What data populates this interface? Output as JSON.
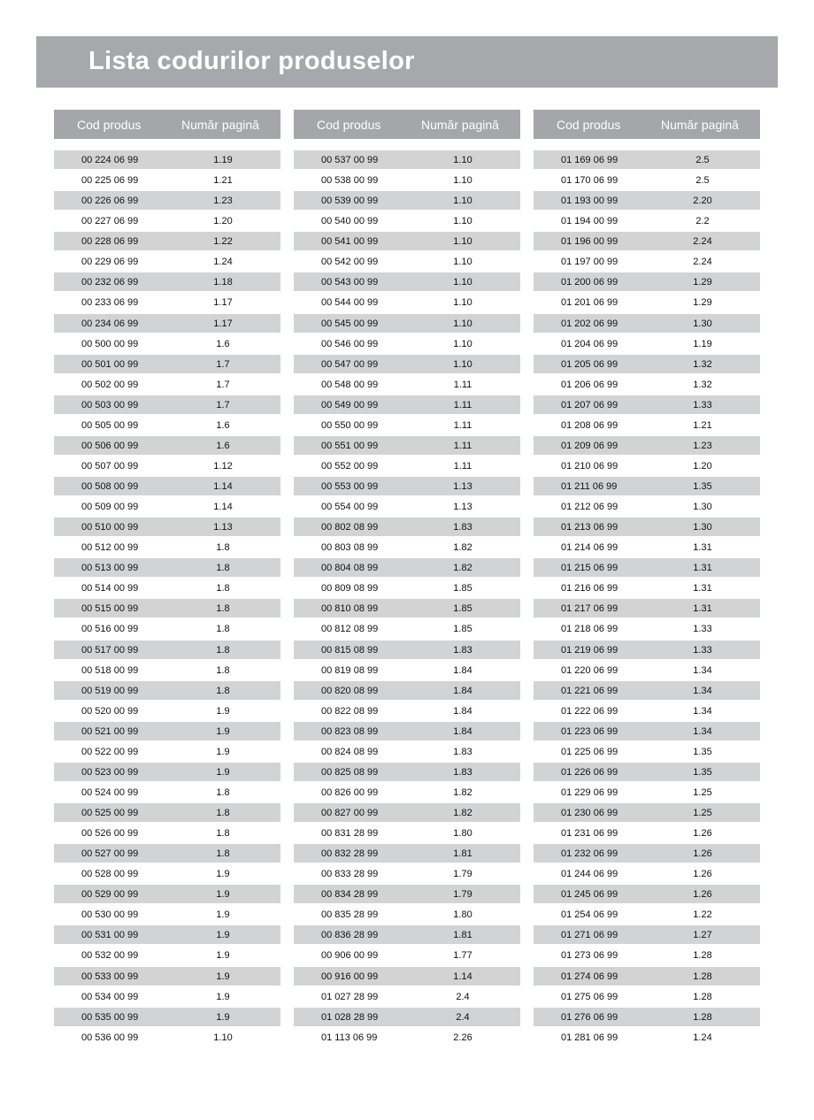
{
  "title": "Lista codurilor produselor",
  "headers": {
    "code": "Cod produs",
    "page": "Număr pagină"
  },
  "colors": {
    "title_bar": "#a7a8ab",
    "header": "#a5a6a9",
    "row_shade": "#d2d3d5"
  },
  "columns": [
    {
      "rows": [
        [
          "00 224 06 99",
          "1.19"
        ],
        [
          "00 225 06 99",
          "1.21"
        ],
        [
          "00 226 06 99",
          "1.23"
        ],
        [
          "00 227 06 99",
          "1.20"
        ],
        [
          "00 228 06 99",
          "1.22"
        ],
        [
          "00 229 06 99",
          "1.24"
        ],
        [
          "00 232 06 99",
          "1.18"
        ],
        [
          "00 233 06 99",
          "1.17"
        ],
        [
          "00 234 06 99",
          "1.17"
        ],
        [
          "00 500 00 99",
          "1.6"
        ],
        [
          "00 501 00 99",
          "1.7"
        ],
        [
          "00 502 00 99",
          "1.7"
        ],
        [
          "00 503 00 99",
          "1.7"
        ],
        [
          "00 505 00 99",
          "1.6"
        ],
        [
          "00 506 00 99",
          "1.6"
        ],
        [
          "00 507 00 99",
          "1.12"
        ],
        [
          "00 508 00 99",
          "1.14"
        ],
        [
          "00 509 00 99",
          "1.14"
        ],
        [
          "00 510 00 99",
          "1.13"
        ],
        [
          "00 512 00 99",
          "1.8"
        ],
        [
          "00 513 00 99",
          "1.8"
        ],
        [
          "00 514 00 99",
          "1.8"
        ],
        [
          "00 515 00 99",
          "1.8"
        ],
        [
          "00 516 00 99",
          "1.8"
        ],
        [
          "00 517 00 99",
          "1.8"
        ],
        [
          "00 518 00 99",
          "1.8"
        ],
        [
          "00 519 00 99",
          "1.8"
        ],
        [
          "00 520 00 99",
          "1.9"
        ],
        [
          "00 521 00 99",
          "1.9"
        ],
        [
          "00 522 00 99",
          "1.9"
        ],
        [
          "00 523 00 99",
          "1.9"
        ],
        [
          "00 524 00 99",
          "1.8"
        ],
        [
          "00 525 00 99",
          "1.8"
        ],
        [
          "00 526 00 99",
          "1.8"
        ],
        [
          "00 527 00 99",
          "1.8"
        ],
        [
          "00 528 00 99",
          "1.9"
        ],
        [
          "00 529 00 99",
          "1.9"
        ],
        [
          "00 530 00 99",
          "1.9"
        ],
        [
          "00 531 00 99",
          "1.9"
        ],
        [
          "00 532 00 99",
          "1.9"
        ],
        [
          "00 533 00 99",
          "1.9"
        ],
        [
          "00 534 00 99",
          "1.9"
        ],
        [
          "00 535 00 99",
          "1.9"
        ],
        [
          "00 536 00 99",
          "1.10"
        ]
      ]
    },
    {
      "rows": [
        [
          "00 537 00 99",
          "1.10"
        ],
        [
          "00 538 00 99",
          "1.10"
        ],
        [
          "00 539 00 99",
          "1.10"
        ],
        [
          "00 540 00 99",
          "1.10"
        ],
        [
          "00 541 00 99",
          "1.10"
        ],
        [
          "00 542 00 99",
          "1.10"
        ],
        [
          "00 543 00 99",
          "1.10"
        ],
        [
          "00 544 00 99",
          "1.10"
        ],
        [
          "00 545 00 99",
          "1.10"
        ],
        [
          "00 546 00 99",
          "1.10"
        ],
        [
          "00 547 00 99",
          "1.10"
        ],
        [
          "00 548 00 99",
          "1.11"
        ],
        [
          "00 549 00 99",
          "1.11"
        ],
        [
          "00 550 00 99",
          "1.11"
        ],
        [
          "00 551 00 99",
          "1.11"
        ],
        [
          "00 552 00 99",
          "1.11"
        ],
        [
          "00 553 00 99",
          "1.13"
        ],
        [
          "00 554 00 99",
          "1.13"
        ],
        [
          "00 802 08 99",
          "1.83"
        ],
        [
          "00 803 08 99",
          "1.82"
        ],
        [
          "00 804 08 99",
          "1.82"
        ],
        [
          "00 809 08 99",
          "1.85"
        ],
        [
          "00 810 08 99",
          "1.85"
        ],
        [
          "00 812 08 99",
          "1.85"
        ],
        [
          "00 815 08 99",
          "1.83"
        ],
        [
          "00 819 08 99",
          "1.84"
        ],
        [
          "00 820 08 99",
          "1.84"
        ],
        [
          "00 822 08 99",
          "1.84"
        ],
        [
          "00 823 08 99",
          "1.84"
        ],
        [
          "00 824 08 99",
          "1.83"
        ],
        [
          "00 825 08 99",
          "1.83"
        ],
        [
          "00 826 00 99",
          "1.82"
        ],
        [
          "00 827 00 99",
          "1.82"
        ],
        [
          "00 831 28 99",
          "1.80"
        ],
        [
          "00 832 28 99",
          "1.81"
        ],
        [
          "00 833 28 99",
          "1.79"
        ],
        [
          "00 834 28 99",
          "1.79"
        ],
        [
          "00 835 28 99",
          "1.80"
        ],
        [
          "00 836 28 99",
          "1.81"
        ],
        [
          "00 906 00 99",
          "1.77"
        ],
        [
          "00 916 00 99",
          "1.14"
        ],
        [
          "01 027 28 99",
          "2.4"
        ],
        [
          "01 028 28 99",
          "2.4"
        ],
        [
          "01 113 06 99",
          "2.26"
        ]
      ]
    },
    {
      "rows": [
        [
          "01 169 06 99",
          "2.5"
        ],
        [
          "01 170 06 99",
          "2.5"
        ],
        [
          "01 193 00 99",
          "2.20"
        ],
        [
          "01 194 00 99",
          "2.2"
        ],
        [
          "01 196 00 99",
          "2.24"
        ],
        [
          "01 197 00 99",
          "2.24"
        ],
        [
          "01 200 06 99",
          "1.29"
        ],
        [
          "01 201 06 99",
          "1.29"
        ],
        [
          "01 202 06 99",
          "1.30"
        ],
        [
          "01 204 06 99",
          "1.19"
        ],
        [
          "01 205 06 99",
          "1.32"
        ],
        [
          "01 206 06 99",
          "1.32"
        ],
        [
          "01 207 06 99",
          "1.33"
        ],
        [
          "01 208 06 99",
          "1.21"
        ],
        [
          "01 209 06 99",
          "1.23"
        ],
        [
          "01 210 06 99",
          "1.20"
        ],
        [
          "01 211 06 99",
          "1.35"
        ],
        [
          "01 212 06 99",
          "1.30"
        ],
        [
          "01 213 06 99",
          "1.30"
        ],
        [
          "01 214 06 99",
          "1.31"
        ],
        [
          "01 215 06 99",
          "1.31"
        ],
        [
          "01 216 06 99",
          "1.31"
        ],
        [
          "01 217 06 99",
          "1.31"
        ],
        [
          "01 218 06 99",
          "1.33"
        ],
        [
          "01 219 06 99",
          "1.33"
        ],
        [
          "01 220 06 99",
          "1.34"
        ],
        [
          "01 221 06 99",
          "1.34"
        ],
        [
          "01 222 06 99",
          "1.34"
        ],
        [
          "01 223 06 99",
          "1.34"
        ],
        [
          "01 225 06 99",
          "1.35"
        ],
        [
          "01 226 06 99",
          "1.35"
        ],
        [
          "01 229 06 99",
          "1.25"
        ],
        [
          "01 230 06 99",
          "1.25"
        ],
        [
          "01 231 06 99",
          "1.26"
        ],
        [
          "01 232 06 99",
          "1.26"
        ],
        [
          "01 244 06 99",
          "1.26"
        ],
        [
          "01 245 06 99",
          "1.26"
        ],
        [
          "01 254 06 99",
          "1.22"
        ],
        [
          "01 271 06 99",
          "1.27"
        ],
        [
          "01 273 06 99",
          "1.28"
        ],
        [
          "01 274 06 99",
          "1.28"
        ],
        [
          "01 275 06 99",
          "1.28"
        ],
        [
          "01 276 06 99",
          "1.28"
        ],
        [
          "01 281 06 99",
          "1.24"
        ]
      ]
    }
  ]
}
